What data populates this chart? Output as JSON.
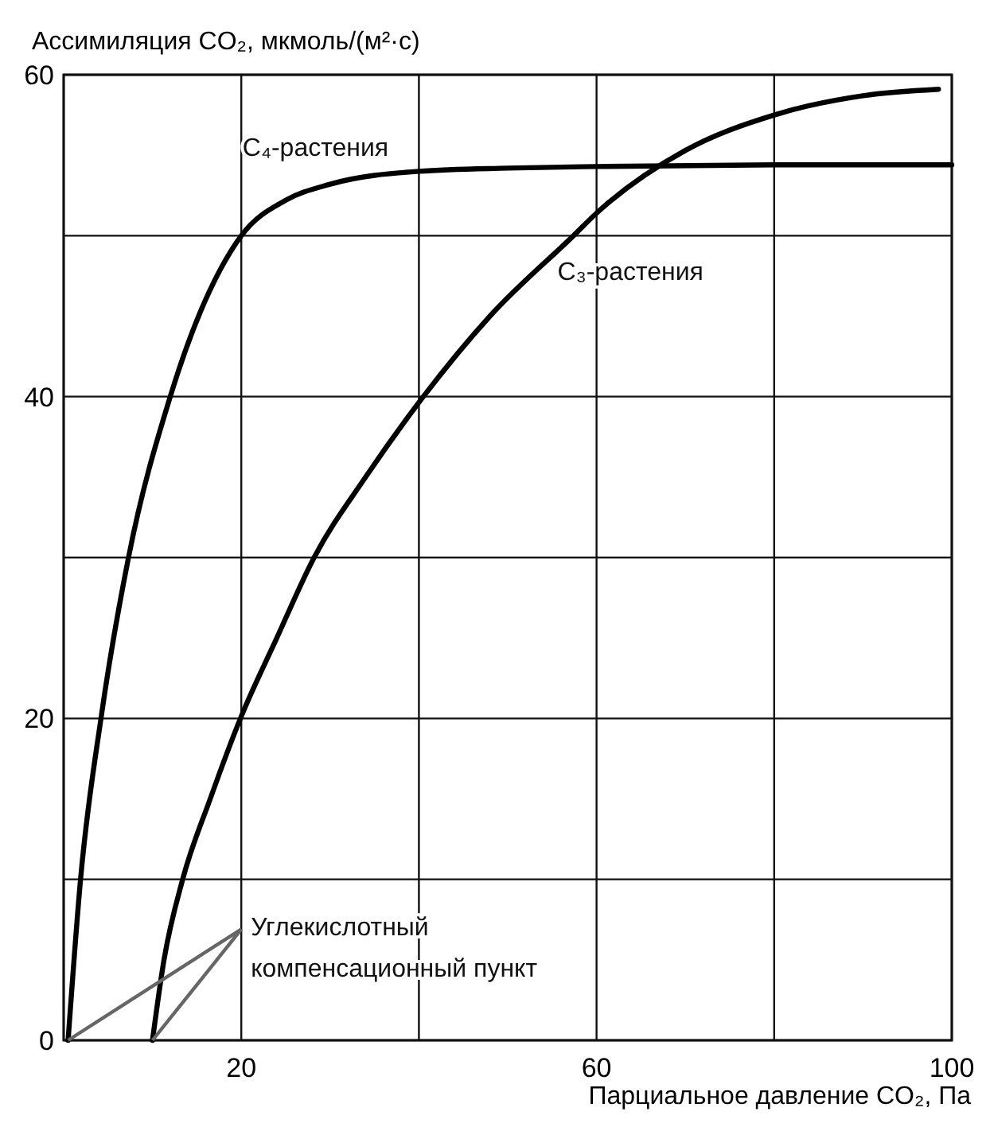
{
  "chart_data": {
    "type": "line",
    "ylabel": "Ассимиляция CO₂, мкмоль/(м²·с)",
    "xlabel": "Парциальное давление CO₂, Па",
    "xlim": [
      0,
      100
    ],
    "xticks": [
      {
        "value": 0,
        "label": null
      },
      20,
      {
        "value": 40,
        "label": null
      },
      60,
      {
        "value": 80,
        "label": null
      },
      100
    ],
    "ylim": [
      0,
      60
    ],
    "yticks": [
      0,
      {
        "value": 10,
        "label": null
      },
      20,
      {
        "value": 30,
        "label": null
      },
      40,
      {
        "value": 50,
        "label": null
      },
      60
    ],
    "grid": true,
    "marker": "none",
    "line_style": "solid",
    "series": [
      {
        "name": "C₄-растения",
        "color": "#000000",
        "x": [
          0.5,
          1.9,
          4.2,
          7.3,
          12,
          20,
          25,
          30,
          40,
          50,
          60,
          80,
          100
        ],
        "values": [
          0,
          10,
          20,
          30,
          40,
          50,
          52.2,
          53.2,
          54,
          54.2,
          54.3,
          54.4,
          54.4
        ]
      },
      {
        "name": "C₃-растения",
        "color": "#000000",
        "x": [
          10,
          11.3,
          13.4,
          16.5,
          19.9,
          24,
          28.2,
          34,
          40.5,
          48,
          57.4,
          60,
          70,
          80,
          90,
          98.5
        ],
        "values": [
          0,
          5,
          10,
          15,
          20,
          25,
          30,
          35,
          40,
          45,
          50,
          51.4,
          55.3,
          57.5,
          58.7,
          59.1
        ]
      }
    ],
    "annotations": [
      {
        "text": "Углекислотный компенсационный пункт",
        "x": 10,
        "y": 0
      }
    ]
  }
}
